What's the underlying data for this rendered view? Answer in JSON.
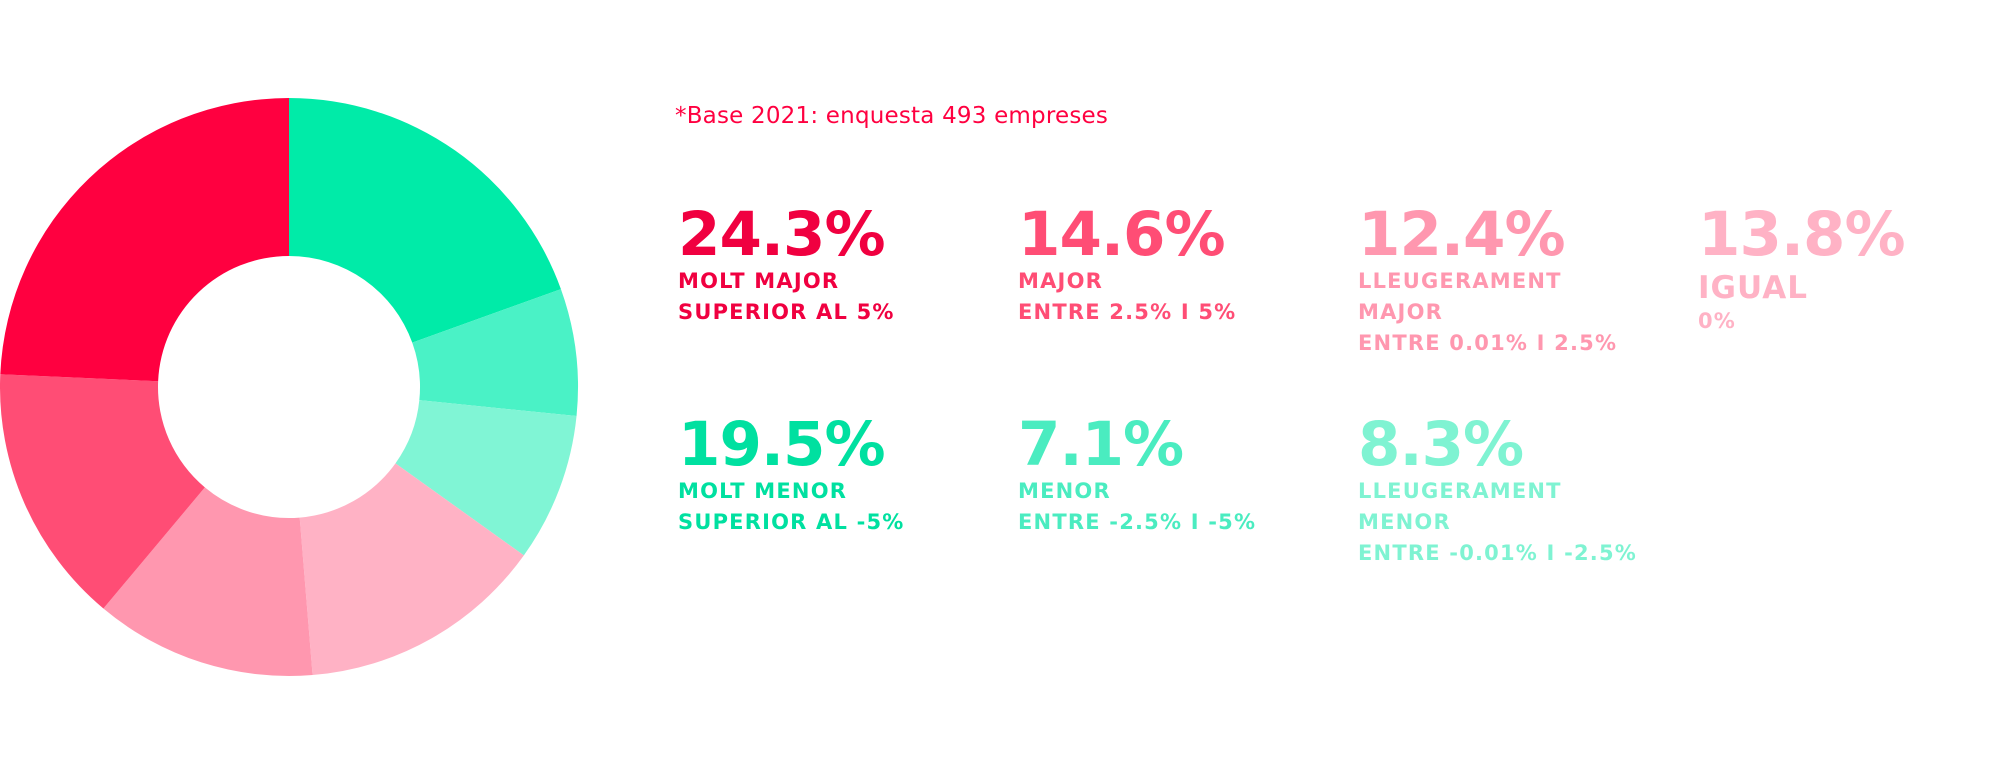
{
  "note": "*Base 2021: enquesta 493 empreses",
  "chart_data": {
    "type": "pie",
    "variant": "donut",
    "slices": [
      {
        "value": 19.5,
        "label": "19.5%",
        "category": "MOLT MENOR",
        "detail": "SUPERIOR AL -5%",
        "color": "#00eba8"
      },
      {
        "value": 7.1,
        "label": "7.1%",
        "category": "MENOR",
        "detail": "ENTRE -2.5% I -5%",
        "color": "#4af2c6"
      },
      {
        "value": 8.3,
        "label": "8.3%",
        "category": "LLEUGERAMENT MENOR",
        "detail": "ENTRE -0.01% I -2.5%",
        "color": "#80f5d5"
      },
      {
        "value": 13.8,
        "label": "13.8%",
        "category": "IGUAL",
        "detail": "0%",
        "color": "#ffb2c5"
      },
      {
        "value": 12.4,
        "label": "12.4%",
        "category": "LLEUGERAMENT MAJOR",
        "detail": "ENTRE 0.01% I 2.5%",
        "color": "#ff97af"
      },
      {
        "value": 14.6,
        "label": "14.6%",
        "category": "MAJOR",
        "detail": "ENTRE 2.5% I 5%",
        "color": "#ff4d75"
      },
      {
        "value": 24.3,
        "label": "24.3%",
        "category": "MOLT MAJOR",
        "detail": "SUPERIOR AL 5%",
        "color": "#ff0040"
      }
    ]
  },
  "legend": [
    {
      "pct": "24.3%",
      "lines": [
        "MOLT MAJOR",
        "SUPERIOR AL 5%"
      ],
      "color": "#f00040"
    },
    {
      "pct": "14.6%",
      "lines": [
        "MAJOR",
        "ENTRE 2.5% I 5%"
      ],
      "color": "#ff4d75"
    },
    {
      "pct": "12.4%",
      "lines": [
        "LLEUGERAMENT",
        "MAJOR",
        "ENTRE 0.01% I 2.5%"
      ],
      "color": "#ff97af"
    },
    {
      "pct": "13.8%",
      "lines": [
        "IGUAL",
        "0%"
      ],
      "color": "#ffb2c5"
    },
    {
      "pct": "19.5%",
      "lines": [
        "MOLT MENOR",
        "SUPERIOR AL -5%"
      ],
      "color": "#00e0a0"
    },
    {
      "pct": "7.1%",
      "lines": [
        "MENOR",
        "ENTRE -2.5% I -5%"
      ],
      "color": "#4aecc0"
    },
    {
      "pct": "8.3%",
      "lines": [
        "LLEUGERAMENT",
        "MENOR",
        "ENTRE -0.01% I -2.5%"
      ],
      "color": "#7ff3d2"
    }
  ]
}
